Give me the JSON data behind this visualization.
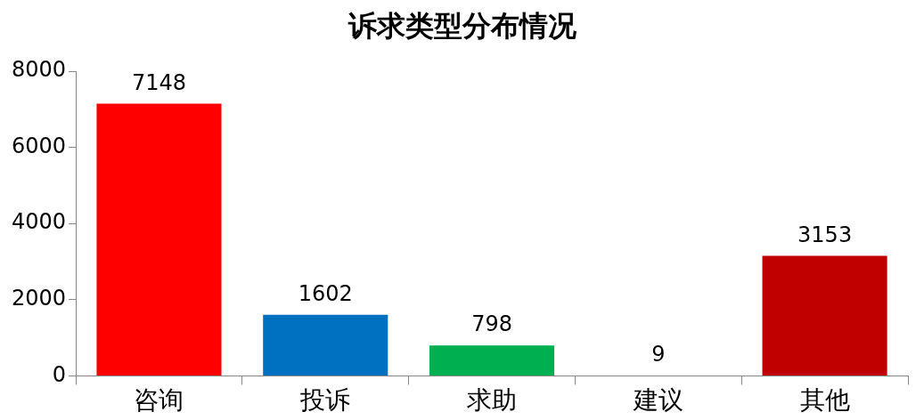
{
  "chart_data": {
    "type": "bar",
    "title": "诉求类型分布情况",
    "categories": [
      "咨询",
      "投诉",
      "求助",
      "建议",
      "其他"
    ],
    "values": [
      7148,
      1602,
      798,
      9,
      3153
    ],
    "colors": [
      "#ff0000",
      "#0070c0",
      "#00b050",
      "#ffc000",
      "#c00000"
    ],
    "ylim": [
      0,
      8000
    ],
    "yticks": [
      0,
      2000,
      4000,
      6000,
      8000
    ],
    "grid": false,
    "legend": false,
    "data_labels": true
  }
}
